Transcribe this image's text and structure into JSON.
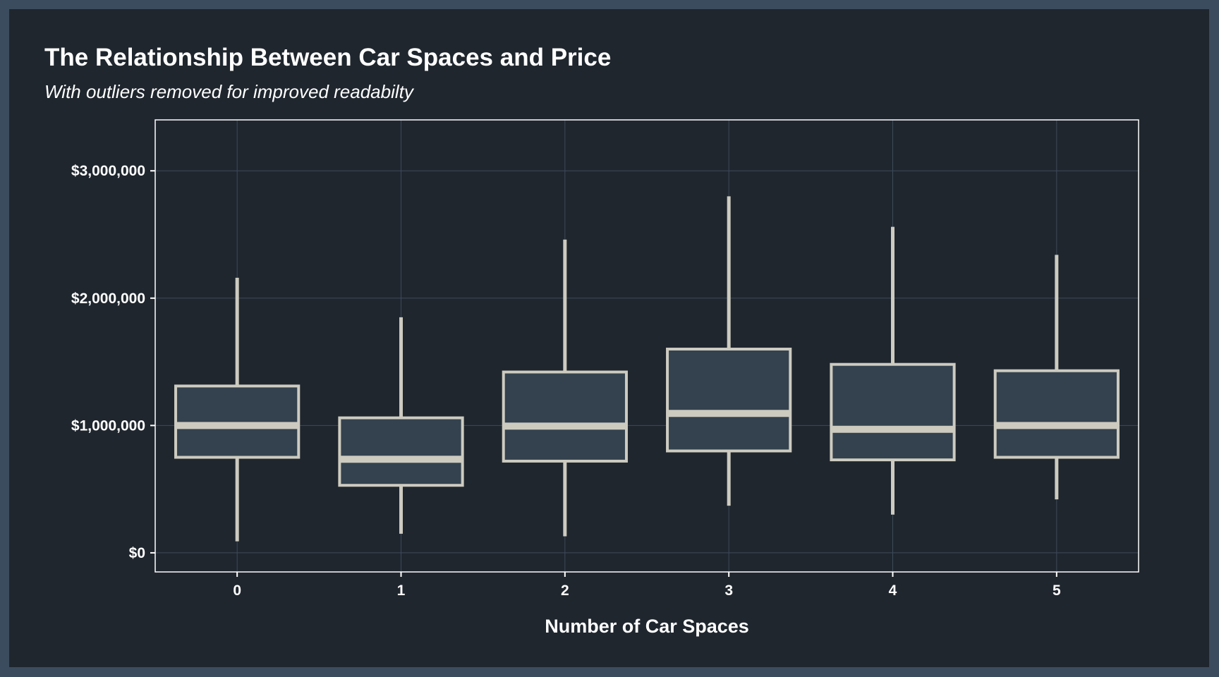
{
  "colors": {
    "outer_background": "#3a4c5e",
    "panel_background": "#1f262e",
    "box_fill": "#34424f",
    "box_line": "#cdcbc0",
    "grid": "#3c4b58",
    "panel_border": "#ffffff",
    "text": "#ffffff"
  },
  "chart_data": {
    "type": "boxplot",
    "title": "The Relationship Between Car Spaces and Price",
    "subtitle": "With outliers removed for improved readabilty",
    "xlabel": "Number of Car Spaces",
    "ylabel": "",
    "categories": [
      "0",
      "1",
      "2",
      "3",
      "4",
      "5"
    ],
    "ylim": [
      -150000,
      3400000
    ],
    "y_ticks": [
      0,
      1000000,
      2000000,
      3000000
    ],
    "y_tick_labels": [
      "$0",
      "$1,000,000",
      "$2,000,000",
      "$3,000,000"
    ],
    "grid": true,
    "legend": "none",
    "boxes": [
      {
        "category": "0",
        "min": 90000,
        "q1": 750000,
        "median": 1000000,
        "q3": 1310000,
        "max": 2160000
      },
      {
        "category": "1",
        "min": 150000,
        "q1": 530000,
        "median": 735000,
        "q3": 1060000,
        "max": 1850000
      },
      {
        "category": "2",
        "min": 130000,
        "q1": 720000,
        "median": 995000,
        "q3": 1420000,
        "max": 2460000
      },
      {
        "category": "3",
        "min": 370000,
        "q1": 800000,
        "median": 1095000,
        "q3": 1600000,
        "max": 2800000
      },
      {
        "category": "4",
        "min": 300000,
        "q1": 730000,
        "median": 970000,
        "q3": 1480000,
        "max": 2560000
      },
      {
        "category": "5",
        "min": 420000,
        "q1": 750000,
        "median": 1000000,
        "q3": 1430000,
        "max": 2340000
      }
    ]
  }
}
